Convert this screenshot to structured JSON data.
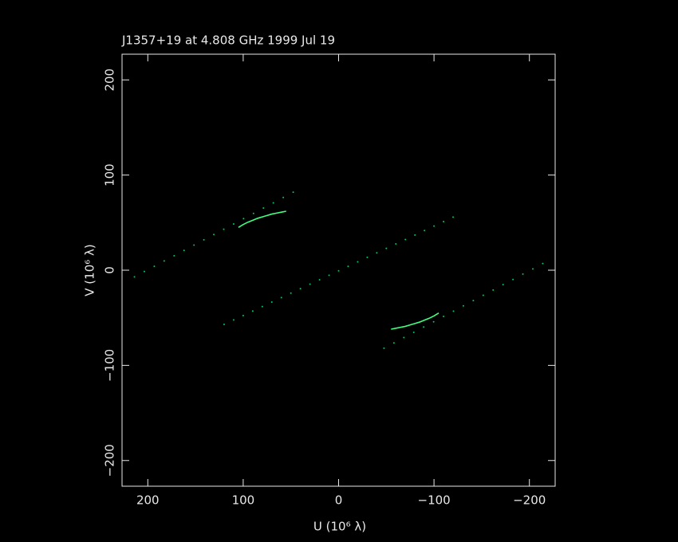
{
  "chart_data": {
    "type": "scatter",
    "title": "J1357+19 at 4.808 GHz 1999 Jul 19",
    "x_label": "U (10⁶ λ)",
    "y_label": "V (10⁶ λ)",
    "xlim": [
      227,
      -227
    ],
    "ylim": [
      -227,
      227
    ],
    "xticks": [
      200,
      100,
      0,
      {
        "value": -100,
        "label": "−100"
      },
      {
        "value": -200,
        "label": "−200"
      }
    ],
    "yticks": [
      {
        "value": -200,
        "label": "−200"
      },
      {
        "value": -100,
        "label": "−100"
      },
      0,
      100,
      200
    ],
    "series": [
      {
        "mode": "points",
        "color": "#00c860",
        "x": [
          214,
          203.6,
          193.2,
          182.8,
          172.4,
          162,
          151.6,
          141.2,
          130.8,
          120.4,
          110,
          99.6,
          89.2,
          78.8,
          68.4,
          58,
          47.6
        ],
        "values": [
          -7,
          -1.4,
          4.1,
          9.7,
          15.2,
          20.8,
          26.4,
          31.9,
          37.5,
          43,
          48.6,
          54.2,
          59.7,
          65.3,
          70.8,
          76.4,
          82
        ]
      },
      {
        "mode": "points",
        "color": "#00c860",
        "x": [
          -214,
          -203.6,
          -193.2,
          -182.8,
          -172.4,
          -162,
          -151.6,
          -141.2,
          -130.8,
          -120.4,
          -110,
          -99.6,
          -89.2,
          -78.8,
          -68.4,
          -58,
          -47.6
        ],
        "values": [
          7,
          1.4,
          -4.1,
          -9.7,
          -15.2,
          -20.8,
          -26.4,
          -31.9,
          -37.5,
          -43,
          -48.6,
          -54.2,
          -59.7,
          -65.3,
          -70.8,
          -76.4,
          -82
        ]
      },
      {
        "mode": "points",
        "color": "#00c860",
        "x": [
          120,
          110,
          100,
          90,
          80,
          70,
          60,
          50,
          40,
          30,
          20,
          10,
          0,
          -10,
          -20,
          -30,
          -40,
          -50,
          -60,
          -70,
          -80,
          -90,
          -100,
          -110,
          -120
        ],
        "values": [
          -57,
          -52.3,
          -47.6,
          -42.9,
          -38.2,
          -33.5,
          -28.8,
          -24.1,
          -19.4,
          -14.7,
          -10,
          -5.3,
          -0.6,
          4.1,
          8.8,
          13.5,
          18.2,
          22.9,
          27.6,
          32.3,
          37,
          41.7,
          46.4,
          51.1,
          55.8
        ]
      },
      {
        "mode": "line",
        "color": "#40ff80",
        "x": [
          105,
          100,
          95,
          90,
          85,
          80,
          75,
          70,
          65,
          60,
          55
        ],
        "values": [
          45,
          48,
          50.5,
          52.5,
          54.5,
          56,
          57.5,
          59,
          60,
          61,
          62
        ]
      },
      {
        "mode": "line",
        "color": "#40ff80",
        "x": [
          -105,
          -100,
          -95,
          -90,
          -85,
          -80,
          -75,
          -70,
          -65,
          -60,
          -55
        ],
        "values": [
          -45,
          -48,
          -50.5,
          -52.5,
          -54.5,
          -56,
          -57.5,
          -59,
          -60,
          -61,
          -62
        ]
      }
    ]
  }
}
